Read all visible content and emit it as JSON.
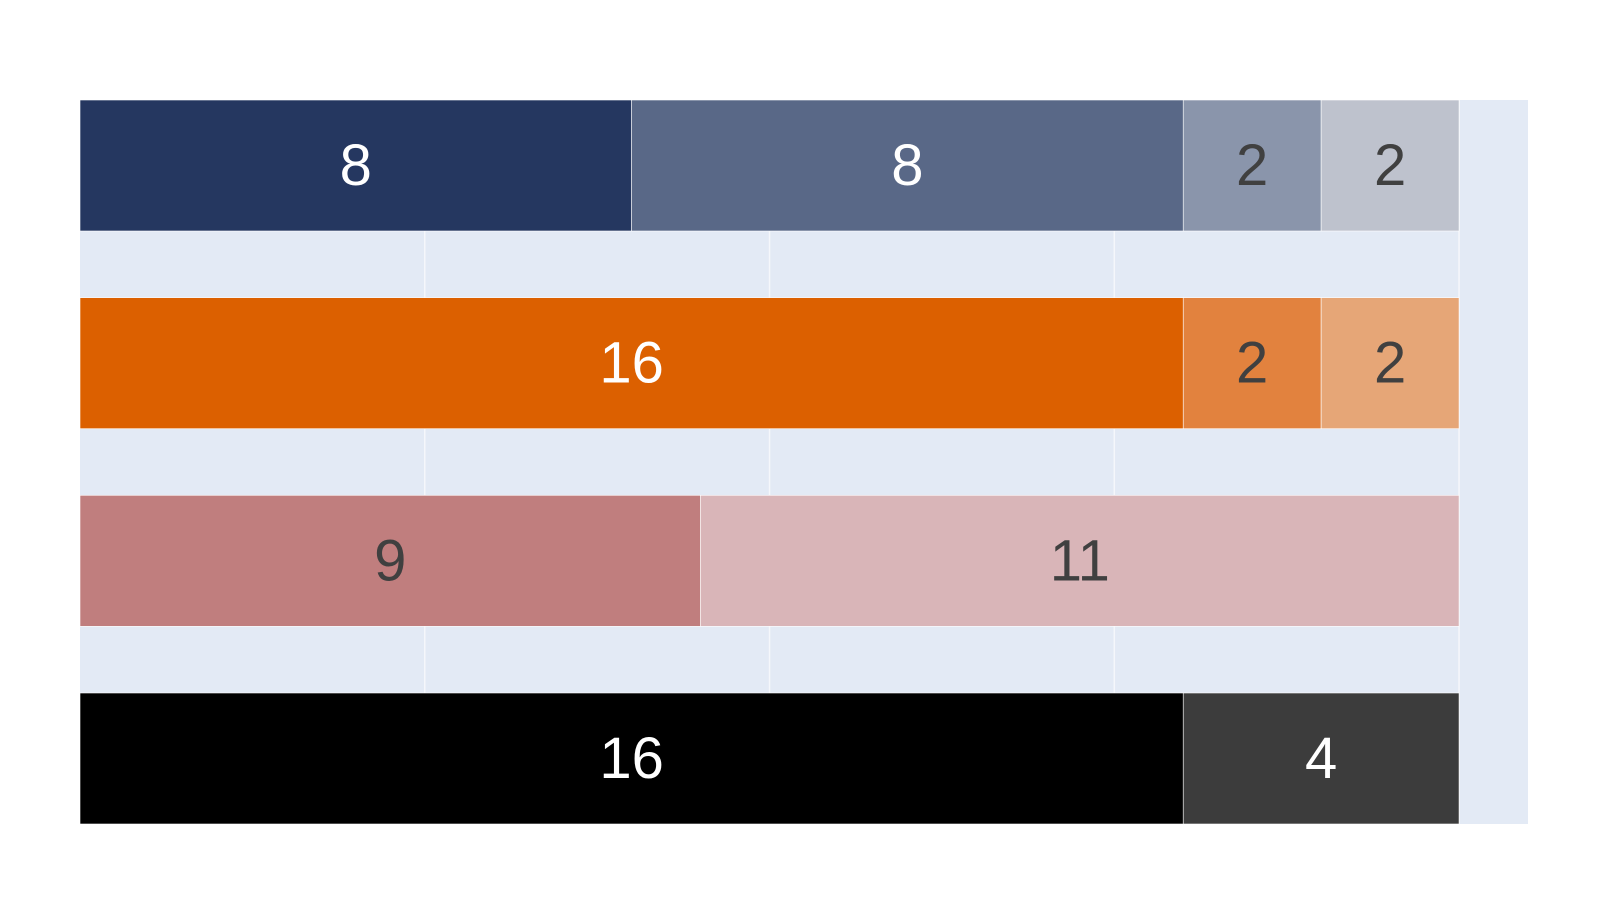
{
  "chart_data": {
    "type": "bar",
    "orientation": "horizontal",
    "stacked": true,
    "title": "",
    "xlabel": "",
    "ylabel": "",
    "xlim": [
      0,
      21
    ],
    "grid": true,
    "rows": [
      {
        "segments": [
          {
            "value": 8,
            "color": "#253760",
            "label_color": "#ffffff"
          },
          {
            "value": 8,
            "color": "#596887",
            "label_color": "#ffffff"
          },
          {
            "value": 2,
            "color": "#8a95ab",
            "label_color": "#404040"
          },
          {
            "value": 2,
            "color": "#bec2cd",
            "label_color": "#404040"
          }
        ]
      },
      {
        "segments": [
          {
            "value": 16,
            "color": "#dc6000",
            "label_color": "#ffffff"
          },
          {
            "value": 2,
            "color": "#e2823e",
            "label_color": "#404040"
          },
          {
            "value": 2,
            "color": "#e6a677",
            "label_color": "#404040"
          }
        ]
      },
      {
        "segments": [
          {
            "value": 9,
            "color": "#c07e7e",
            "label_color": "#404040"
          },
          {
            "value": 11,
            "color": "#d9b5b8",
            "label_color": "#404040"
          }
        ]
      },
      {
        "segments": [
          {
            "value": 16,
            "color": "#000000",
            "label_color": "#ffffff"
          },
          {
            "value": 4,
            "color": "#3c3c3c",
            "label_color": "#ffffff"
          }
        ]
      }
    ],
    "plot_background": "#e3eaf5",
    "grid_color": "#f5f7fb"
  }
}
